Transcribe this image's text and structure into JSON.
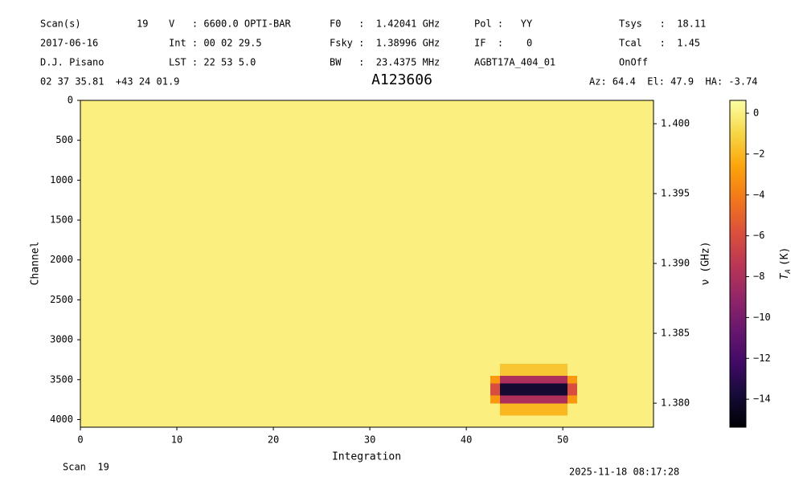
{
  "chart_data": {
    "type": "heatmap",
    "title": "A123606",
    "annotations": [
      "Scan(s)",
      "19",
      "V   : 6600.0 OPTI-BAR",
      "F0   :  1.42041 GHz",
      "Pol :   YY",
      "Tsys   :  18.11",
      "2017-06-16",
      "Int : 00 02 29.5",
      "Fsky :  1.38996 GHz",
      "IF  :    0",
      "Tcal   :  1.45",
      "D.J. Pisano",
      "LST : 22 53 5.0",
      "BW   :  23.4375 MHz",
      "AGBT17A_404_01",
      "OnOff",
      "02 37 35.81  +43 24 01.9",
      "Az: 64.4  El: 47.9  HA: -3.74",
      "Scan  19",
      "2025-11-18 08:17:28"
    ],
    "xlabel": "Integration",
    "ylabel": "Channel",
    "y2label": "ν (GHz)",
    "colorbar_label": {
      "symbol": "T",
      "sub": "A",
      "unit": "(K)"
    },
    "xlim": [
      0,
      59.4
    ],
    "xticks": [
      0,
      10,
      20,
      30,
      40,
      50
    ],
    "ylim": [
      4096,
      0
    ],
    "yticks": [
      0,
      500,
      1000,
      1500,
      2000,
      2500,
      3000,
      3500,
      4000
    ],
    "y2lim": [
      1.37828,
      1.40167
    ],
    "y2ticks": [
      {
        "value": 1.4,
        "label": "1.400"
      },
      {
        "value": 1.395,
        "label": "1.395"
      },
      {
        "value": 1.39,
        "label": "1.390"
      },
      {
        "value": 1.385,
        "label": "1.385"
      },
      {
        "value": 1.38,
        "label": "1.380"
      }
    ],
    "clim": [
      -15.37,
      0.63
    ],
    "cticks": [
      {
        "value": 0,
        "label": "0"
      },
      {
        "value": -2,
        "label": "−2"
      },
      {
        "value": -4,
        "label": "−4"
      },
      {
        "value": -6,
        "label": "−6"
      },
      {
        "value": -8,
        "label": "−8"
      },
      {
        "value": -10,
        "label": "−10"
      },
      {
        "value": -12,
        "label": "−12"
      },
      {
        "value": -14,
        "label": "−14"
      }
    ],
    "colormap": "inferno",
    "xbins": [
      0,
      42.5,
      43.5,
      50.5,
      51.5,
      59.4
    ],
    "ybins": [
      0,
      3300,
      3450,
      3550,
      3700,
      3800,
      3950,
      4096
    ],
    "z": [
      [
        0,
        0,
        0,
        0,
        0
      ],
      [
        0,
        0,
        -1.5,
        0,
        0
      ],
      [
        0,
        -3,
        -8,
        -3,
        0
      ],
      [
        0,
        -6,
        -14,
        -6,
        0
      ],
      [
        0,
        -3,
        -8,
        -3,
        0
      ],
      [
        0,
        0,
        -2,
        0,
        0
      ],
      [
        0,
        0,
        0,
        0,
        0
      ]
    ]
  }
}
